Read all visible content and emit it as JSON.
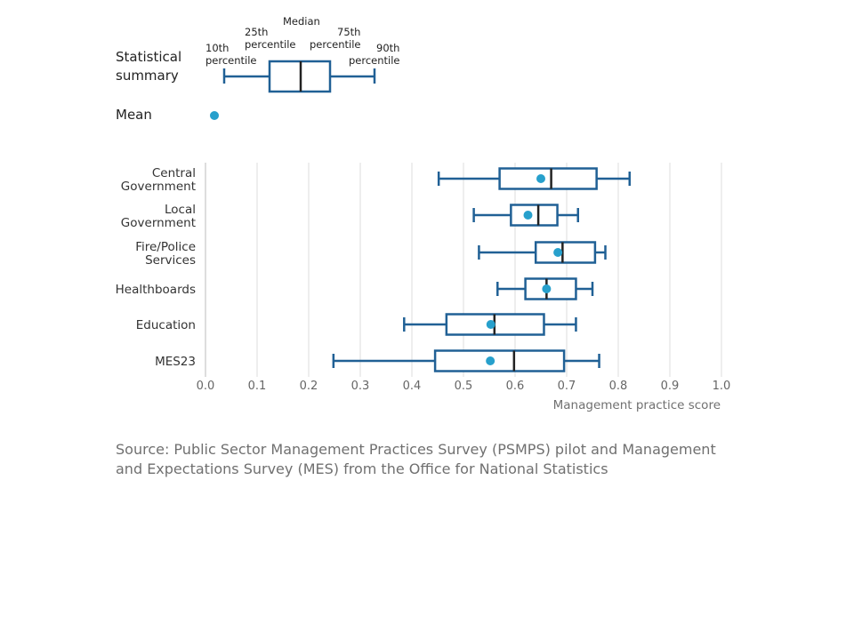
{
  "legend": {
    "summary_label_line1": "Statistical",
    "summary_label_line2": "summary",
    "mean_label": "Mean",
    "p10_line1": "10th",
    "p10_line2": "percentile",
    "p25_line1": "25th",
    "p25_line2": "percentile",
    "median": "Median",
    "p75_line1": "75th",
    "p75_line2": "percentile",
    "p90_line1": "90th",
    "p90_line2": "percentile"
  },
  "colors": {
    "box": "#206095",
    "median": "#222222",
    "mean": "#27a0cc",
    "grid": "#dddddd",
    "axis": "#bbbbbb"
  },
  "chart_data": {
    "type": "box",
    "title": "",
    "xlabel": "Management practice score",
    "ylabel": "",
    "xlim": [
      0,
      1
    ],
    "x_ticks": [
      "0.0",
      "0.1",
      "0.2",
      "0.3",
      "0.4",
      "0.5",
      "0.6",
      "0.7",
      "0.8",
      "0.9",
      "1.0"
    ],
    "grid": true,
    "categories": [
      {
        "label": [
          "Central",
          "Government"
        ],
        "p10": 0.452,
        "p25": 0.57,
        "median": 0.67,
        "p75": 0.758,
        "p90": 0.822,
        "mean": 0.65
      },
      {
        "label": [
          "Local",
          "Government"
        ],
        "p10": 0.52,
        "p25": 0.592,
        "median": 0.645,
        "p75": 0.682,
        "p90": 0.722,
        "mean": 0.625
      },
      {
        "label": [
          "Fire/Police",
          "Services"
        ],
        "p10": 0.53,
        "p25": 0.64,
        "median": 0.692,
        "p75": 0.755,
        "p90": 0.775,
        "mean": 0.683
      },
      {
        "label": [
          "Healthboards"
        ],
        "p10": 0.566,
        "p25": 0.62,
        "median": 0.661,
        "p75": 0.718,
        "p90": 0.75,
        "mean": 0.661
      },
      {
        "label": [
          "Education"
        ],
        "p10": 0.385,
        "p25": 0.467,
        "median": 0.56,
        "p75": 0.656,
        "p90": 0.718,
        "mean": 0.553
      },
      {
        "label": [
          "MES23"
        ],
        "p10": 0.248,
        "p25": 0.445,
        "median": 0.598,
        "p75": 0.695,
        "p90": 0.763,
        "mean": 0.552
      }
    ]
  },
  "source": "Source: Public Sector Management Practices Survey (PSMPS) pilot and Management and Expectations Survey (MES) from the Office for National Statistics"
}
